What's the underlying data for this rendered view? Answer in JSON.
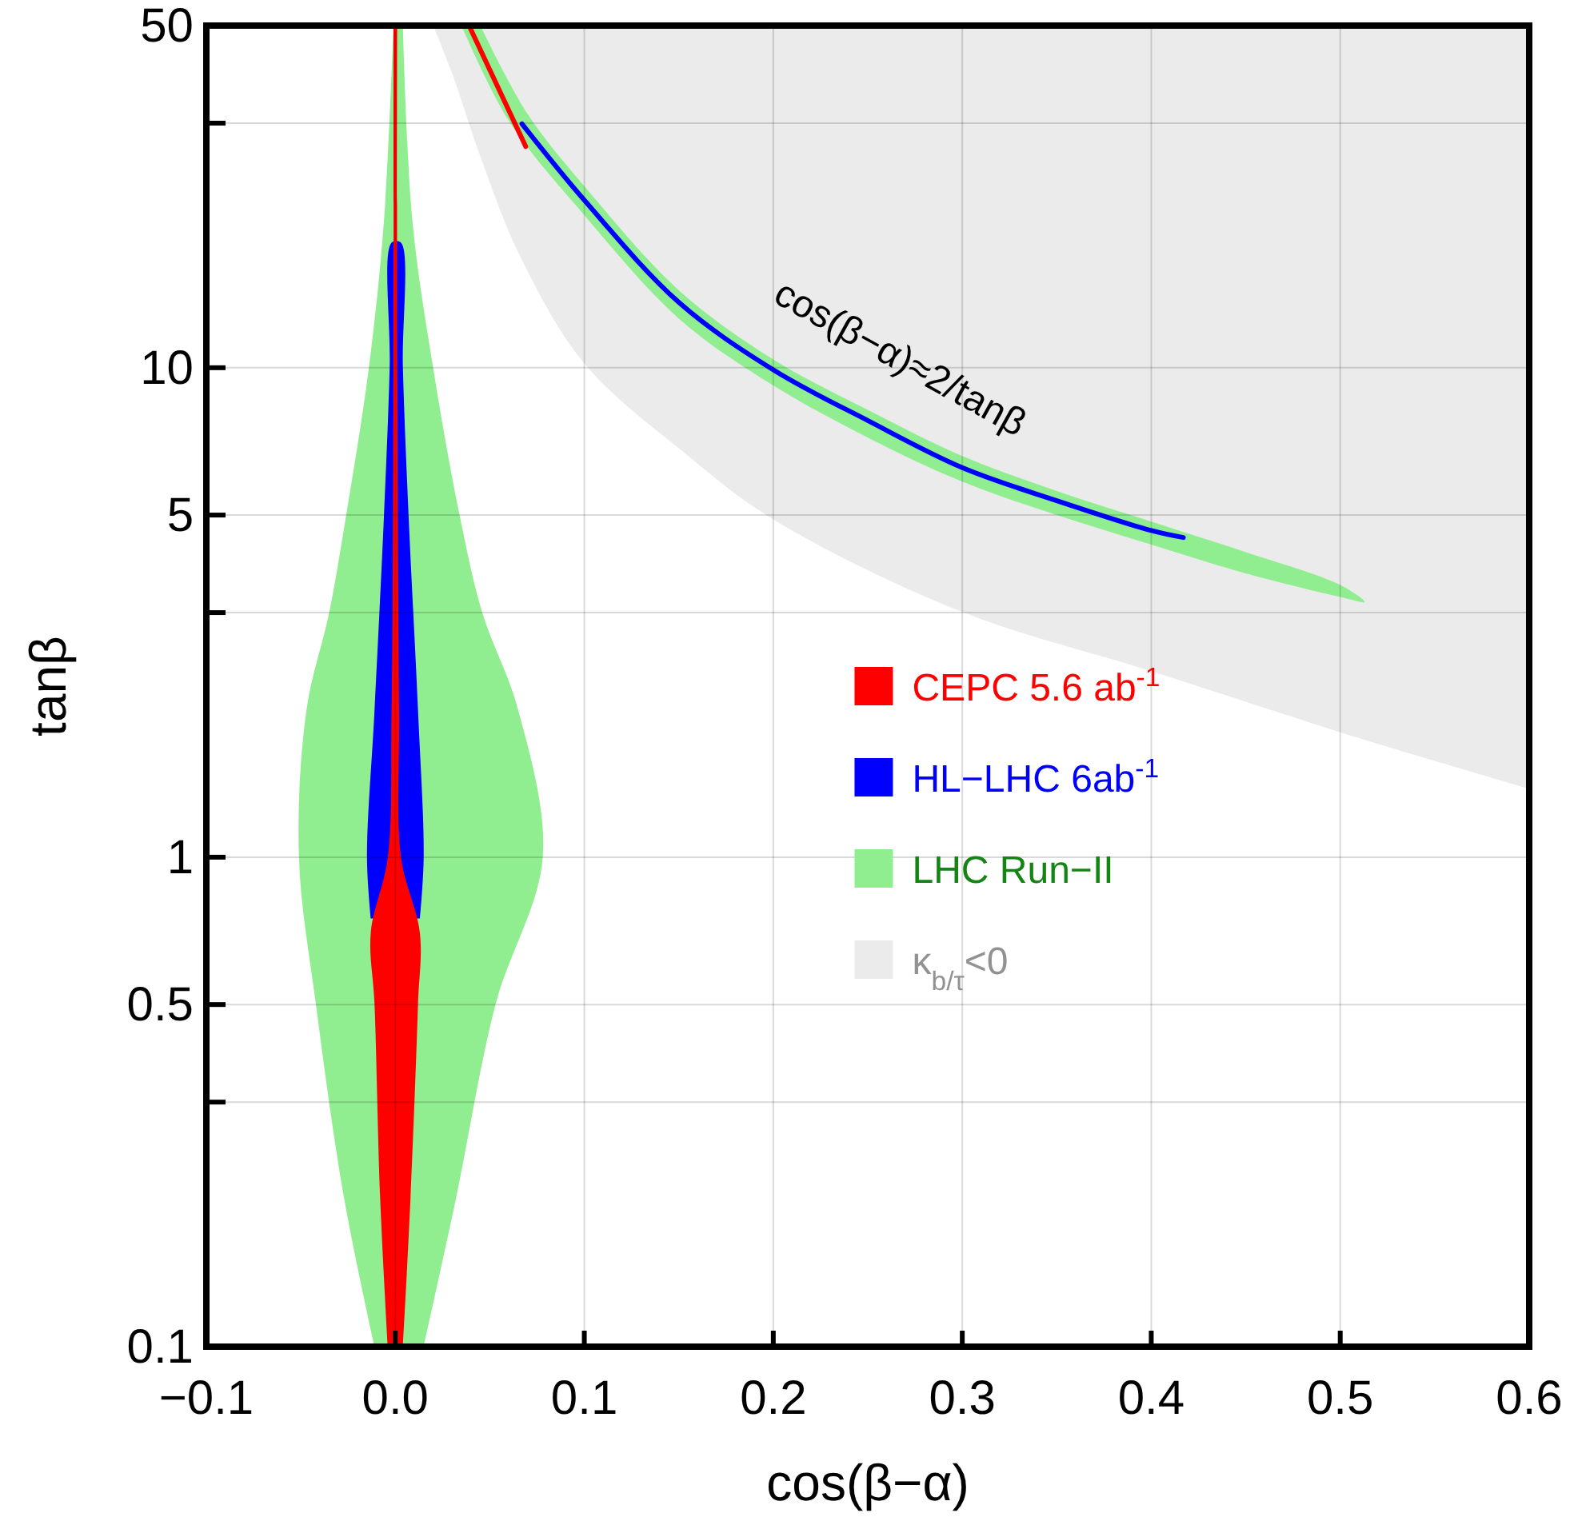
{
  "chart_data": {
    "type": "area",
    "xlabel": "cos(β−α)",
    "ylabel": "tanβ",
    "xlim": [
      -0.1,
      0.6
    ],
    "xticks": [
      {
        "value": -0.1,
        "label": "−0.1"
      },
      {
        "value": 0,
        "label": "0.0"
      },
      0.1,
      0.2,
      0.3,
      0.4,
      0.5,
      0.6
    ],
    "ylim": [
      0.1,
      50
    ],
    "yticks": [
      0.1,
      {
        "value": 0.316,
        "label": null
      },
      0.5,
      1,
      {
        "value": 3.16,
        "label": null
      },
      5,
      10,
      {
        "value": 31.6,
        "label": null
      },
      50
    ],
    "log": "y",
    "grid": true,
    "legend": "center",
    "annotations": [
      "cos(β−α)≈2/tanβ"
    ],
    "series": [
      {
        "name": "κ$_{b/τ}$<0",
        "color": "#ebebeb",
        "x": [
          0.02,
          0.03,
          0.045,
          0.066,
          0.1,
          0.153,
          0.2,
          0.3,
          0.4,
          0.5,
          0.6,
          0.6
        ],
        "values": [
          50,
          40,
          27,
          16.9,
          10.2,
          6.7,
          4.9,
          3.17,
          2.4,
          1.8,
          1.38,
          50
        ]
      },
      {
        "name": "LHC Run−II",
        "color": "#90ee90",
        "x": [
          -0.011,
          -0.027,
          -0.042,
          -0.051,
          -0.047,
          -0.035,
          -0.026,
          -0.014,
          -0.006,
          -0.001,
          0.004,
          0.009,
          0.02,
          0.034,
          0.046,
          0.065,
          0.078,
          0.053,
          0.032,
          0.015
        ],
        "values": [
          0.1,
          0.2,
          0.5,
          1,
          2,
          3.16,
          5,
          10,
          20,
          50,
          50,
          20,
          10,
          5,
          3.16,
          2,
          1,
          0.5,
          0.2,
          0.1
        ]
      },
      {
        "color": "#90ee90",
        "x": [
          0.045,
          0.07,
          0.1,
          0.15,
          0.2,
          0.25,
          0.3,
          0.35,
          0.4,
          0.45,
          0.5,
          0.513,
          0.5,
          0.45,
          0.4,
          0.35,
          0.3,
          0.25,
          0.2,
          0.15,
          0.1,
          0.06,
          0.035
        ],
        "values": [
          50,
          33,
          23.5,
          14.4,
          10.4,
          8.2,
          6.6,
          5.6,
          4.85,
          4.2,
          3.6,
          3.32,
          3.4,
          3.8,
          4.35,
          5,
          5.85,
          7.2,
          9.2,
          12.6,
          20.5,
          32,
          50
        ]
      },
      {
        "name": "HL−LHC 6ab$^{-1}$",
        "color": "#0000ff",
        "x": [
          -0.013,
          -0.015,
          -0.011,
          -0.006,
          -0.003,
          -0.002,
          0.003,
          0.004,
          0.007,
          0.012,
          0.015,
          0.013
        ],
        "values": [
          0.75,
          1,
          2,
          5,
          10,
          18,
          18,
          10,
          5,
          2,
          1,
          0.75
        ]
      },
      {
        "type": "line",
        "color": "#0000ff",
        "x": [
          0.067,
          0.1,
          0.15,
          0.2,
          0.25,
          0.3,
          0.35,
          0.4,
          0.417
        ],
        "values": [
          31.5,
          22,
          13.6,
          9.9,
          7.8,
          6.25,
          5.35,
          4.65,
          4.5
        ]
      },
      {
        "name": "CEPC 5.6 ab$^{-1}$",
        "color": "#ff0000",
        "x": [
          -0.004,
          -0.008,
          -0.011,
          -0.013,
          -0.004,
          -0.002,
          -0.001,
          -0.001,
          0.001,
          0.001,
          0.002,
          0.003,
          0.013,
          0.012,
          0.008,
          0.004
        ],
        "values": [
          0.1,
          0.2,
          0.5,
          0.7,
          1,
          2,
          10,
          50,
          50,
          10,
          2,
          1,
          0.7,
          0.5,
          0.2,
          0.1
        ]
      },
      {
        "type": "line",
        "color": "#ff0000",
        "x": [
          0.039,
          0.069
        ],
        "values": [
          50,
          28.3
        ]
      }
    ]
  }
}
